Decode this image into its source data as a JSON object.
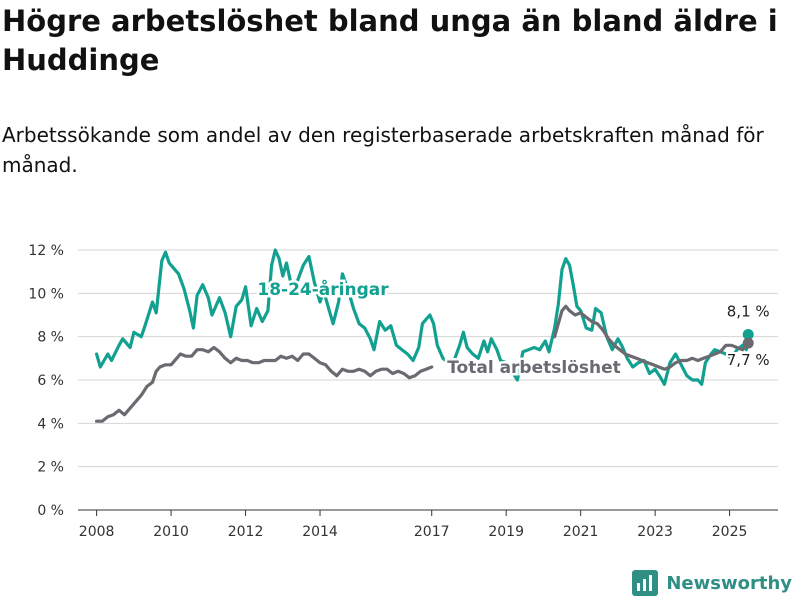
{
  "title": "Högre arbetslöshet bland unga än bland äldre i Huddinge",
  "subtitle": "Arbetssökande som andel av den registerbaserade arbetskraften månad för månad.",
  "brand": {
    "name": "Newsworthy",
    "icon": "newsworthy-logo-icon"
  },
  "colors": {
    "youth": "#12a191",
    "total": "#6a6a70",
    "grid": "#d5d5d5",
    "axis": "#333333"
  },
  "chart_data": {
    "type": "line",
    "ylim": [
      0,
      12
    ],
    "xlim": [
      2007.5,
      2026.3
    ],
    "yticks": [
      0,
      2,
      4,
      6,
      8,
      10,
      12
    ],
    "ytick_labels": [
      "0 %",
      "2 %",
      "4 %",
      "6 %",
      "8 %",
      "10 %",
      "12 %"
    ],
    "xticks": [
      2008,
      2010,
      2012,
      2014,
      2017,
      2019,
      2021,
      2023,
      2025
    ],
    "xtick_labels": [
      "2008",
      "2010",
      "2012",
      "2014",
      "2017",
      "2019",
      "2021",
      "2023",
      "2025"
    ],
    "grid": true,
    "series": [
      {
        "name": "18-24-åringar",
        "color": "#12a191",
        "end_label": "8,1 %",
        "points": [
          [
            2008.0,
            7.2
          ],
          [
            2008.1,
            6.6
          ],
          [
            2008.3,
            7.2
          ],
          [
            2008.4,
            6.9
          ],
          [
            2008.6,
            7.6
          ],
          [
            2008.7,
            7.9
          ],
          [
            2008.9,
            7.5
          ],
          [
            2009.0,
            8.2
          ],
          [
            2009.2,
            8.0
          ],
          [
            2009.3,
            8.5
          ],
          [
            2009.5,
            9.6
          ],
          [
            2009.6,
            9.1
          ],
          [
            2009.75,
            11.5
          ],
          [
            2009.85,
            11.9
          ],
          [
            2009.95,
            11.4
          ],
          [
            2010.05,
            11.2
          ],
          [
            2010.2,
            10.9
          ],
          [
            2010.35,
            10.2
          ],
          [
            2010.5,
            9.2
          ],
          [
            2010.6,
            8.4
          ],
          [
            2010.7,
            9.9
          ],
          [
            2010.85,
            10.4
          ],
          [
            2011.0,
            9.8
          ],
          [
            2011.1,
            9.0
          ],
          [
            2011.3,
            9.8
          ],
          [
            2011.45,
            9.1
          ],
          [
            2011.6,
            8.0
          ],
          [
            2011.75,
            9.4
          ],
          [
            2011.9,
            9.7
          ],
          [
            2012.0,
            10.3
          ],
          [
            2012.15,
            8.5
          ],
          [
            2012.3,
            9.3
          ],
          [
            2012.45,
            8.7
          ],
          [
            2012.6,
            9.2
          ],
          [
            2012.7,
            11.3
          ],
          [
            2012.8,
            12.0
          ],
          [
            2012.9,
            11.6
          ],
          [
            2013.0,
            10.8
          ],
          [
            2013.1,
            11.4
          ],
          [
            2013.25,
            10.2
          ],
          [
            2013.4,
            10.6
          ],
          [
            2013.55,
            11.3
          ],
          [
            2013.7,
            11.7
          ],
          [
            2013.85,
            10.5
          ],
          [
            2014.0,
            9.6
          ],
          [
            2014.1,
            10.1
          ],
          [
            2014.25,
            9.2
          ],
          [
            2014.35,
            8.6
          ],
          [
            2014.5,
            9.6
          ],
          [
            2014.6,
            10.9
          ],
          [
            2014.75,
            10.2
          ],
          [
            2014.9,
            9.3
          ],
          [
            2015.05,
            8.6
          ],
          [
            2015.2,
            8.4
          ],
          [
            2015.35,
            7.9
          ],
          [
            2015.45,
            7.4
          ],
          [
            2015.6,
            8.7
          ],
          [
            2015.75,
            8.3
          ],
          [
            2015.9,
            8.5
          ],
          [
            2016.05,
            7.6
          ],
          [
            2016.2,
            7.4
          ],
          [
            2016.35,
            7.2
          ],
          [
            2016.5,
            6.9
          ],
          [
            2016.65,
            7.5
          ],
          [
            2016.75,
            8.6
          ],
          [
            2016.85,
            8.8
          ],
          [
            2016.95,
            9.0
          ],
          [
            2017.05,
            8.6
          ],
          [
            2017.15,
            7.6
          ],
          [
            2017.3,
            7.0
          ],
          [
            2017.45,
            6.8
          ],
          [
            2017.6,
            6.9
          ],
          [
            2017.75,
            7.6
          ],
          [
            2017.85,
            8.2
          ],
          [
            2017.95,
            7.5
          ],
          [
            2018.1,
            7.2
          ],
          [
            2018.25,
            7.0
          ],
          [
            2018.4,
            7.8
          ],
          [
            2018.5,
            7.3
          ],
          [
            2018.6,
            7.9
          ],
          [
            2018.75,
            7.4
          ],
          [
            2018.85,
            6.9
          ],
          [
            2019.0,
            6.8
          ],
          [
            2019.15,
            6.4
          ],
          [
            2019.3,
            6.0
          ],
          [
            2019.45,
            7.3
          ],
          [
            2019.6,
            7.4
          ],
          [
            2019.75,
            7.5
          ],
          [
            2019.9,
            7.4
          ],
          [
            2020.05,
            7.8
          ],
          [
            2020.15,
            7.3
          ],
          [
            2020.3,
            8.4
          ],
          [
            2020.4,
            9.5
          ],
          [
            2020.5,
            11.1
          ],
          [
            2020.6,
            11.6
          ],
          [
            2020.7,
            11.3
          ],
          [
            2020.8,
            10.4
          ],
          [
            2020.9,
            9.4
          ],
          [
            2021.0,
            9.2
          ],
          [
            2021.15,
            8.4
          ],
          [
            2021.3,
            8.3
          ],
          [
            2021.4,
            9.3
          ],
          [
            2021.55,
            9.1
          ],
          [
            2021.7,
            8.0
          ],
          [
            2021.85,
            7.4
          ],
          [
            2022.0,
            7.9
          ],
          [
            2022.1,
            7.6
          ],
          [
            2022.25,
            7.0
          ],
          [
            2022.4,
            6.6
          ],
          [
            2022.55,
            6.8
          ],
          [
            2022.7,
            6.9
          ],
          [
            2022.85,
            6.3
          ],
          [
            2023.0,
            6.5
          ],
          [
            2023.15,
            6.1
          ],
          [
            2023.25,
            5.8
          ],
          [
            2023.4,
            6.8
          ],
          [
            2023.55,
            7.2
          ],
          [
            2023.7,
            6.7
          ],
          [
            2023.85,
            6.2
          ],
          [
            2024.0,
            6.0
          ],
          [
            2024.15,
            6.0
          ],
          [
            2024.25,
            5.8
          ],
          [
            2024.35,
            6.8
          ],
          [
            2024.5,
            7.2
          ],
          [
            2024.6,
            7.4
          ],
          [
            2024.75,
            7.3
          ],
          [
            2024.9,
            7.2
          ],
          [
            2025.05,
            7.0
          ],
          [
            2025.2,
            7.4
          ],
          [
            2025.35,
            7.6
          ],
          [
            2025.45,
            7.4
          ],
          [
            2025.5,
            8.1
          ]
        ]
      },
      {
        "name": "Total arbetslöshet",
        "color": "#6a6a70",
        "end_label": "7,7 %",
        "points": [
          [
            2008.0,
            4.1
          ],
          [
            2008.15,
            4.1
          ],
          [
            2008.3,
            4.3
          ],
          [
            2008.45,
            4.4
          ],
          [
            2008.6,
            4.6
          ],
          [
            2008.75,
            4.4
          ],
          [
            2008.9,
            4.7
          ],
          [
            2009.05,
            5.0
          ],
          [
            2009.2,
            5.3
          ],
          [
            2009.35,
            5.7
          ],
          [
            2009.5,
            5.9
          ],
          [
            2009.6,
            6.4
          ],
          [
            2009.7,
            6.6
          ],
          [
            2009.85,
            6.7
          ],
          [
            2010.0,
            6.7
          ],
          [
            2010.15,
            7.0
          ],
          [
            2010.25,
            7.2
          ],
          [
            2010.4,
            7.1
          ],
          [
            2010.55,
            7.1
          ],
          [
            2010.7,
            7.4
          ],
          [
            2010.85,
            7.4
          ],
          [
            2011.0,
            7.3
          ],
          [
            2011.15,
            7.5
          ],
          [
            2011.3,
            7.3
          ],
          [
            2011.45,
            7.0
          ],
          [
            2011.6,
            6.8
          ],
          [
            2011.75,
            7.0
          ],
          [
            2011.9,
            6.9
          ],
          [
            2012.05,
            6.9
          ],
          [
            2012.2,
            6.8
          ],
          [
            2012.35,
            6.8
          ],
          [
            2012.5,
            6.9
          ],
          [
            2012.65,
            6.9
          ],
          [
            2012.8,
            6.9
          ],
          [
            2012.95,
            7.1
          ],
          [
            2013.1,
            7.0
          ],
          [
            2013.25,
            7.1
          ],
          [
            2013.4,
            6.9
          ],
          [
            2013.55,
            7.2
          ],
          [
            2013.7,
            7.2
          ],
          [
            2013.85,
            7.0
          ],
          [
            2014.0,
            6.8
          ],
          [
            2014.15,
            6.7
          ],
          [
            2014.3,
            6.4
          ],
          [
            2014.45,
            6.2
          ],
          [
            2014.6,
            6.5
          ],
          [
            2014.75,
            6.4
          ],
          [
            2014.9,
            6.4
          ],
          [
            2015.05,
            6.5
          ],
          [
            2015.2,
            6.4
          ],
          [
            2015.35,
            6.2
          ],
          [
            2015.5,
            6.4
          ],
          [
            2015.65,
            6.5
          ],
          [
            2015.8,
            6.5
          ],
          [
            2015.95,
            6.3
          ],
          [
            2016.1,
            6.4
          ],
          [
            2016.25,
            6.3
          ],
          [
            2016.4,
            6.1
          ],
          [
            2016.55,
            6.2
          ],
          [
            2016.7,
            6.4
          ],
          [
            2016.85,
            6.5
          ],
          [
            2017.0,
            6.6
          ]
        ]
      },
      {
        "name": "",
        "color": "#6a6a70",
        "points": [
          [
            2020.3,
            8.0
          ],
          [
            2020.4,
            8.6
          ],
          [
            2020.5,
            9.2
          ],
          [
            2020.6,
            9.4
          ],
          [
            2020.7,
            9.2
          ],
          [
            2020.85,
            9.0
          ],
          [
            2021.0,
            9.1
          ],
          [
            2021.15,
            8.9
          ],
          [
            2021.3,
            8.7
          ],
          [
            2021.45,
            8.6
          ],
          [
            2021.6,
            8.3
          ],
          [
            2021.75,
            7.9
          ],
          [
            2021.9,
            7.6
          ],
          [
            2022.05,
            7.4
          ],
          [
            2022.2,
            7.2
          ],
          [
            2022.35,
            7.1
          ],
          [
            2022.5,
            7.0
          ],
          [
            2022.65,
            6.9
          ],
          [
            2022.8,
            6.8
          ],
          [
            2022.95,
            6.7
          ],
          [
            2023.1,
            6.6
          ],
          [
            2023.25,
            6.5
          ],
          [
            2023.4,
            6.6
          ],
          [
            2023.55,
            6.8
          ],
          [
            2023.7,
            6.9
          ],
          [
            2023.85,
            6.9
          ],
          [
            2024.0,
            7.0
          ],
          [
            2024.15,
            6.9
          ],
          [
            2024.3,
            7.0
          ],
          [
            2024.45,
            7.1
          ],
          [
            2024.6,
            7.2
          ],
          [
            2024.75,
            7.3
          ],
          [
            2024.9,
            7.6
          ],
          [
            2025.05,
            7.6
          ],
          [
            2025.2,
            7.5
          ],
          [
            2025.35,
            7.4
          ],
          [
            2025.5,
            7.7
          ]
        ]
      }
    ]
  }
}
